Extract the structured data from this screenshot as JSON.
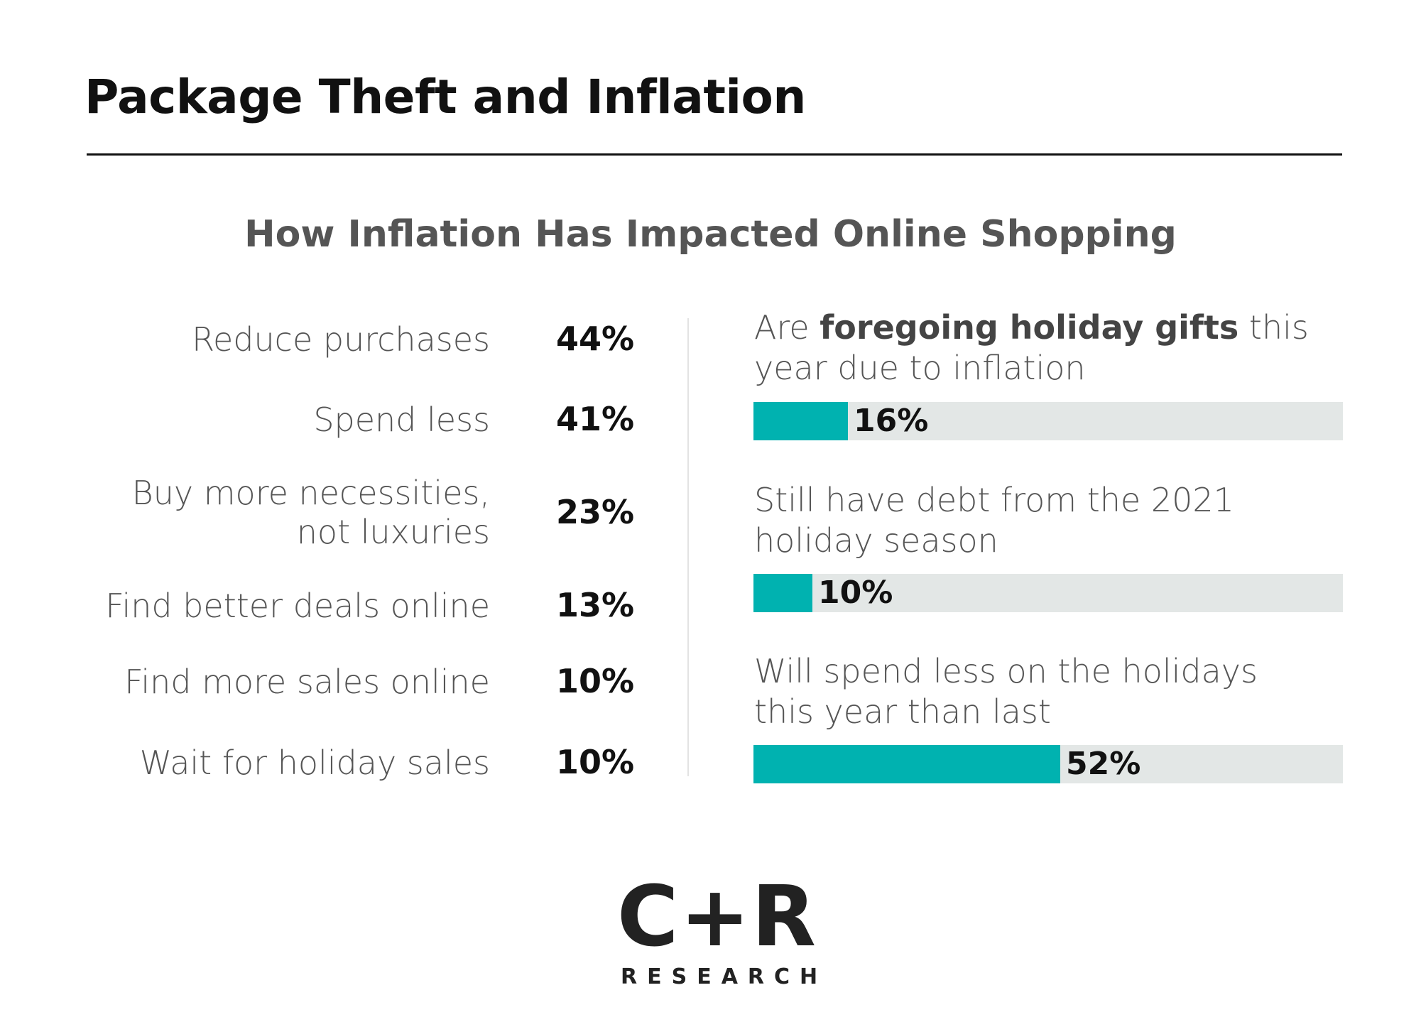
{
  "title": "Package Theft and Inflation",
  "chart_data": [
    {
      "type": "table",
      "title": "How Inflation Has Impacted Online Shopping",
      "categories": [
        "Reduce purchases",
        "Spend less",
        "Buy more necessities, not luxuries",
        "Find better deals online",
        "Find more sales online",
        "Wait for holiday sales"
      ],
      "values": [
        44,
        41,
        23,
        13,
        10,
        10
      ],
      "value_labels": [
        "44%",
        "41%",
        "23%",
        "13%",
        "10%",
        "10%"
      ]
    },
    {
      "type": "bar",
      "orientation": "horizontal",
      "categories": [
        "Are foregoing holiday gifts this year due to inflation",
        "Still have debt from the 2021 holiday season",
        "Will spend less on the holidays this year than last"
      ],
      "values": [
        16,
        10,
        52
      ],
      "value_labels": [
        "16%",
        "10%",
        "52%"
      ],
      "xlim": [
        0,
        100
      ],
      "highlight": "foregoing holiday gifts",
      "colors": {
        "fill": "#00b2b0",
        "track": "#e3e7e6"
      }
    }
  ],
  "logo": {
    "mark": "C+R",
    "sub": "RESEARCH"
  }
}
